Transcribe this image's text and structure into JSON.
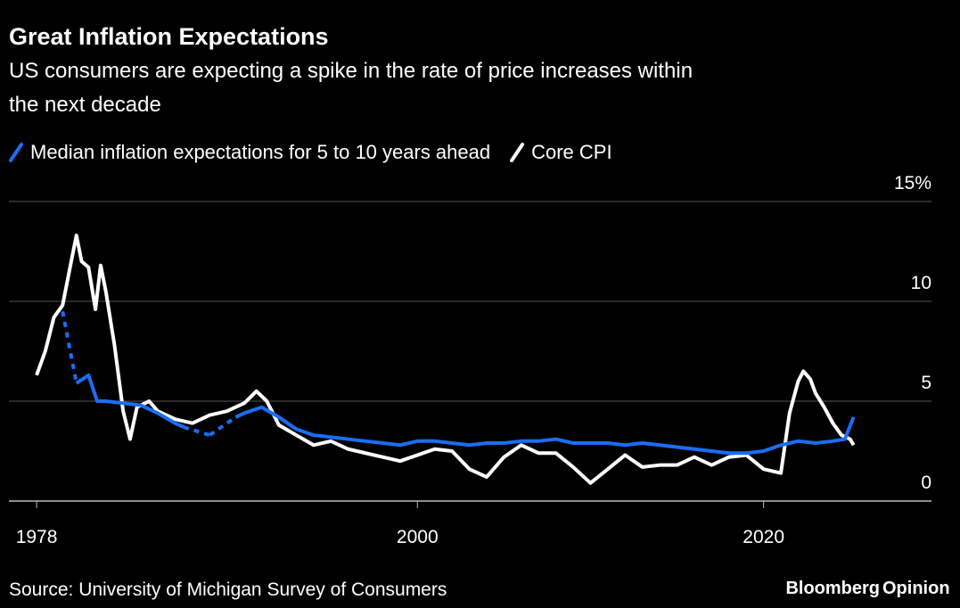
{
  "chart_data": {
    "type": "line",
    "title": "Great Inflation Expectations",
    "subtitle": [
      "US consumers are expecting a spike in the rate of price increases within",
      "the next decade"
    ],
    "source": "Source: University of Michigan Survey of Consumers",
    "brand": [
      "Bloomberg",
      "Opinion"
    ],
    "brand_colors": [
      "#ffffff",
      "#1a6ef5"
    ],
    "xlim": [
      1976.4,
      2029.7
    ],
    "xticks": [
      1978,
      2000,
      2020
    ],
    "ylim": [
      0,
      15
    ],
    "yticks": [
      0,
      5,
      10,
      {
        "value": 15,
        "label": "15%"
      }
    ],
    "grid": true,
    "series": [
      {
        "name": "Median inflation expectations for 5 to 10 years ahead",
        "color": "#1a6ef5",
        "x": [
          1979.5,
          1980,
          1980.3,
          1981,
          1981.5,
          1982,
          1983,
          1984,
          1985,
          1986,
          1986.5,
          1987.2,
          1988,
          1988.7,
          1989.5,
          1990,
          1991,
          1992,
          1993,
          1994,
          1995,
          1996,
          1997,
          1998,
          1999,
          2000,
          2001,
          2002,
          2003,
          2004,
          2005,
          2006,
          2007,
          2008,
          2009,
          2010,
          2011,
          2012,
          2013,
          2014,
          2015,
          2016,
          2017,
          2018,
          2019,
          2020,
          2021,
          2022,
          2023,
          2024,
          2024.7,
          2025.2
        ],
        "values": [
          9.5,
          null,
          5.9,
          6.3,
          5.0,
          5.0,
          4.9,
          4.8,
          4.4,
          3.9,
          3.7,
          null,
          3.3,
          null,
          4.2,
          4.4,
          4.7,
          4.2,
          3.6,
          3.3,
          3.2,
          3.1,
          3.0,
          2.9,
          2.8,
          3.0,
          3.0,
          2.9,
          2.8,
          2.9,
          2.9,
          3.0,
          3.0,
          3.1,
          2.9,
          2.9,
          2.9,
          2.8,
          2.9,
          2.8,
          2.7,
          2.6,
          2.5,
          2.4,
          2.4,
          2.5,
          2.8,
          3.0,
          2.9,
          3.0,
          3.1,
          4.2
        ]
      },
      {
        "name": "Core CPI",
        "color": "#ffffff",
        "x": [
          1978,
          1978.5,
          1979,
          1979.5,
          1980,
          1980.3,
          1980.6,
          1981,
          1981.4,
          1981.7,
          1982,
          1982.5,
          1983,
          1983.4,
          1983.8,
          1984.5,
          1985,
          1986,
          1987,
          1988,
          1989,
          1990,
          1990.7,
          1991.3,
          1992,
          1993,
          1994,
          1995,
          1996,
          1997,
          1998,
          1999,
          2000,
          2001,
          2002,
          2003,
          2004,
          2005,
          2006,
          2007,
          2008,
          2009,
          2010,
          2011,
          2012,
          2013,
          2014,
          2015,
          2016,
          2017,
          2018,
          2019,
          2020,
          2021,
          2021.5,
          2022,
          2022.3,
          2022.7,
          2023,
          2023.5,
          2024,
          2024.5,
          2025,
          2025.2
        ],
        "values": [
          6.3,
          7.5,
          9.2,
          9.8,
          12.0,
          13.3,
          12.0,
          11.7,
          9.6,
          11.8,
          10.5,
          7.8,
          4.5,
          3.1,
          4.7,
          5.0,
          4.5,
          4.1,
          3.9,
          4.3,
          4.5,
          4.9,
          5.5,
          5.0,
          3.8,
          3.3,
          2.8,
          3.0,
          2.6,
          2.4,
          2.2,
          2.0,
          2.3,
          2.6,
          2.5,
          1.6,
          1.2,
          2.2,
          2.8,
          2.4,
          2.4,
          1.7,
          0.9,
          1.6,
          2.3,
          1.7,
          1.8,
          1.8,
          2.2,
          1.8,
          2.2,
          2.3,
          1.6,
          1.4,
          4.4,
          6.0,
          6.5,
          6.1,
          5.4,
          4.7,
          3.9,
          3.3,
          3.1,
          2.8
        ]
      }
    ]
  }
}
